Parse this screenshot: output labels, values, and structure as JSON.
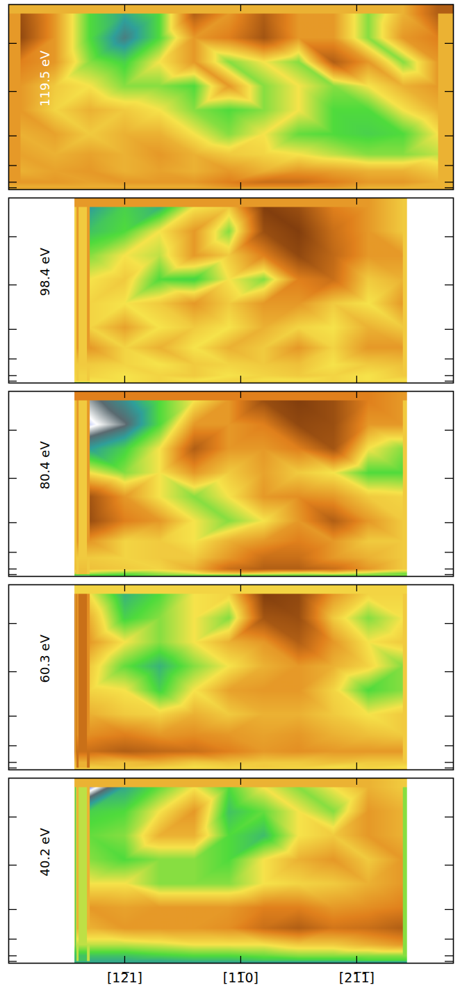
{
  "chart_data": [
    {
      "type": "heatmap",
      "title": "119.5 eV",
      "xlim": [
        -30,
        85
      ],
      "ylim": [
        0,
        1
      ],
      "zlim": [
        0,
        1
      ],
      "xticks": [
        {
          "value": 0,
          "label": "[12̅1]"
        },
        {
          "value": 30,
          "label": "[11̅0]"
        },
        {
          "value": 60,
          "label": "[21̅1̅]"
        }
      ],
      "yticks": [
        0.01,
        0.04,
        0.13,
        0.29,
        0.53,
        0.79
      ],
      "tick_labels": false,
      "x_extent": [
        -30,
        85
      ],
      "y_extent": [
        0,
        1
      ],
      "x": [
        -27,
        -18,
        -9,
        0,
        9,
        18,
        27,
        36,
        45,
        54,
        63,
        72,
        81
      ],
      "y": [
        0.95,
        0.82,
        0.69,
        0.56,
        0.43,
        0.3,
        0.19,
        0.1,
        0.04,
        0.01
      ],
      "values": [
        [
          0.1,
          0.3,
          0.6,
          0.7,
          0.6,
          0.15,
          0.3,
          0.15,
          0.3,
          0.3,
          0.55,
          0.35,
          0.15
        ],
        [
          0.08,
          0.3,
          0.6,
          0.78,
          0.6,
          0.3,
          0.25,
          0.12,
          0.3,
          0.3,
          0.55,
          0.3,
          0.25
        ],
        [
          0.25,
          0.3,
          0.55,
          0.62,
          0.45,
          0.3,
          0.55,
          0.45,
          0.55,
          0.15,
          0.3,
          0.55,
          0.3
        ],
        [
          0.3,
          0.4,
          0.45,
          0.55,
          0.55,
          0.6,
          0.3,
          0.55,
          0.45,
          0.55,
          0.45,
          0.35,
          0.3
        ],
        [
          0.3,
          0.42,
          0.35,
          0.4,
          0.45,
          0.55,
          0.6,
          0.55,
          0.45,
          0.6,
          0.6,
          0.45,
          0.35
        ],
        [
          0.35,
          0.32,
          0.4,
          0.35,
          0.35,
          0.45,
          0.55,
          0.45,
          0.58,
          0.6,
          0.62,
          0.6,
          0.45
        ],
        [
          0.32,
          0.35,
          0.32,
          0.35,
          0.3,
          0.35,
          0.4,
          0.42,
          0.45,
          0.5,
          0.55,
          0.55,
          0.5
        ],
        [
          0.35,
          0.32,
          0.3,
          0.35,
          0.32,
          0.35,
          0.3,
          0.35,
          0.3,
          0.32,
          0.35,
          0.35,
          0.4
        ],
        [
          0.3,
          0.3,
          0.32,
          0.3,
          0.3,
          0.3,
          0.25,
          0.2,
          0.2,
          0.25,
          0.3,
          0.3,
          0.35
        ],
        [
          0.35,
          0.35,
          0.35,
          0.35,
          0.35,
          0.35,
          0.3,
          0.3,
          0.3,
          0.3,
          0.35,
          0.35,
          0.35
        ]
      ]
    },
    {
      "type": "heatmap",
      "title": "98.4 eV",
      "xlim": [
        -30,
        85
      ],
      "ylim": [
        0,
        1
      ],
      "zlim": [
        0,
        1
      ],
      "xticks": [
        {
          "value": 0,
          "label": "[12̅1]"
        },
        {
          "value": 30,
          "label": "[11̅0]"
        },
        {
          "value": 60,
          "label": "[21̅1̅]"
        }
      ],
      "yticks": [
        0.01,
        0.04,
        0.13,
        0.29,
        0.53,
        0.79
      ],
      "tick_labels": false,
      "x_extent": [
        -13,
        73
      ],
      "y_extent": [
        0,
        1
      ],
      "x": [
        -9,
        0,
        9,
        18,
        27,
        36,
        45,
        54,
        63,
        72
      ],
      "y": [
        0.95,
        0.82,
        0.69,
        0.56,
        0.43,
        0.3,
        0.19,
        0.1,
        0.04,
        0.01
      ],
      "values": [
        [
          0.72,
          0.62,
          0.68,
          0.45,
          0.4,
          0.05,
          0.1,
          0.25,
          0.3,
          0.4
        ],
        [
          0.65,
          0.6,
          0.45,
          0.3,
          0.55,
          0.1,
          0.05,
          0.2,
          0.3,
          0.4
        ],
        [
          0.55,
          0.45,
          0.5,
          0.3,
          0.4,
          0.25,
          0.08,
          0.18,
          0.3,
          0.3
        ],
        [
          0.45,
          0.4,
          0.6,
          0.62,
          0.45,
          0.55,
          0.25,
          0.2,
          0.4,
          0.35
        ],
        [
          0.42,
          0.45,
          0.4,
          0.3,
          0.4,
          0.3,
          0.3,
          0.4,
          0.45,
          0.3
        ],
        [
          0.42,
          0.32,
          0.45,
          0.4,
          0.45,
          0.35,
          0.42,
          0.45,
          0.35,
          0.4
        ],
        [
          0.3,
          0.42,
          0.35,
          0.45,
          0.35,
          0.4,
          0.3,
          0.42,
          0.3,
          0.3
        ],
        [
          0.4,
          0.42,
          0.45,
          0.4,
          0.42,
          0.4,
          0.38,
          0.45,
          0.4,
          0.38
        ],
        [
          0.42,
          0.45,
          0.42,
          0.4,
          0.45,
          0.42,
          0.4,
          0.42,
          0.45,
          0.4
        ],
        [
          0.45,
          0.45,
          0.42,
          0.45,
          0.42,
          0.45,
          0.45,
          0.42,
          0.45,
          0.45
        ]
      ]
    },
    {
      "type": "heatmap",
      "title": "80.4 eV",
      "xlim": [
        -30,
        85
      ],
      "ylim": [
        0,
        1
      ],
      "zlim": [
        0,
        1
      ],
      "xticks": [
        {
          "value": 0,
          "label": "[12̅1]"
        },
        {
          "value": 30,
          "label": "[11̅0]"
        },
        {
          "value": 60,
          "label": "[21̅1̅]"
        }
      ],
      "yticks": [
        0.01,
        0.04,
        0.13,
        0.29,
        0.53,
        0.79
      ],
      "tick_labels": false,
      "x_extent": [
        -13,
        73
      ],
      "y_extent": [
        0,
        1
      ],
      "x": [
        -9,
        0,
        9,
        18,
        27,
        36,
        45,
        54,
        63,
        72
      ],
      "y": [
        0.95,
        0.82,
        0.69,
        0.56,
        0.43,
        0.3,
        0.19,
        0.1,
        0.04,
        0.01
      ],
      "values": [
        [
          0.85,
          0.75,
          0.6,
          0.45,
          0.3,
          0.1,
          0.05,
          0.1,
          0.25,
          0.3
        ],
        [
          0.92,
          0.83,
          0.6,
          0.3,
          0.3,
          0.25,
          0.08,
          0.1,
          0.3,
          0.3
        ],
        [
          0.72,
          0.62,
          0.45,
          0.15,
          0.3,
          0.3,
          0.25,
          0.12,
          0.45,
          0.55
        ],
        [
          0.45,
          0.55,
          0.45,
          0.3,
          0.4,
          0.32,
          0.4,
          0.45,
          0.6,
          0.6
        ],
        [
          0.12,
          0.3,
          0.45,
          0.55,
          0.45,
          0.3,
          0.28,
          0.3,
          0.4,
          0.42
        ],
        [
          0.1,
          0.25,
          0.3,
          0.45,
          0.55,
          0.45,
          0.3,
          0.15,
          0.3,
          0.4
        ],
        [
          0.3,
          0.42,
          0.4,
          0.45,
          0.35,
          0.3,
          0.25,
          0.3,
          0.4,
          0.4
        ],
        [
          0.4,
          0.42,
          0.4,
          0.4,
          0.3,
          0.2,
          0.2,
          0.3,
          0.35,
          0.4
        ],
        [
          0.38,
          0.4,
          0.42,
          0.35,
          0.2,
          0.15,
          0.15,
          0.2,
          0.3,
          0.4
        ],
        [
          0.55,
          0.6,
          0.55,
          0.5,
          0.45,
          0.5,
          0.55,
          0.5,
          0.55,
          0.6
        ]
      ]
    },
    {
      "type": "heatmap",
      "title": "60.3 eV",
      "xlim": [
        -30,
        85
      ],
      "ylim": [
        0,
        1
      ],
      "zlim": [
        0,
        1
      ],
      "xticks": [
        {
          "value": 0,
          "label": "[12̅1]"
        },
        {
          "value": 30,
          "label": "[11̅0]"
        },
        {
          "value": 60,
          "label": "[21̅1̅]"
        }
      ],
      "yticks": [
        0.01,
        0.04,
        0.13,
        0.29,
        0.53,
        0.79
      ],
      "tick_labels": false,
      "x_extent": [
        -13,
        73
      ],
      "y_extent": [
        0,
        1
      ],
      "x": [
        -9,
        0,
        9,
        18,
        27,
        36,
        45,
        54,
        63,
        72
      ],
      "y": [
        0.95,
        0.82,
        0.69,
        0.56,
        0.43,
        0.3,
        0.19,
        0.1,
        0.04,
        0.01
      ],
      "values": [
        [
          0.45,
          0.68,
          0.6,
          0.45,
          0.42,
          0.05,
          0.08,
          0.3,
          0.42,
          0.42
        ],
        [
          0.35,
          0.62,
          0.55,
          0.45,
          0.55,
          0.12,
          0.1,
          0.4,
          0.55,
          0.45
        ],
        [
          0.3,
          0.45,
          0.55,
          0.45,
          0.35,
          0.3,
          0.15,
          0.3,
          0.45,
          0.4
        ],
        [
          0.4,
          0.58,
          0.68,
          0.55,
          0.45,
          0.35,
          0.3,
          0.35,
          0.42,
          0.55
        ],
        [
          0.42,
          0.45,
          0.62,
          0.45,
          0.32,
          0.3,
          0.3,
          0.42,
          0.6,
          0.55
        ],
        [
          0.35,
          0.4,
          0.42,
          0.35,
          0.4,
          0.35,
          0.35,
          0.4,
          0.45,
          0.4
        ],
        [
          0.28,
          0.25,
          0.3,
          0.28,
          0.3,
          0.32,
          0.3,
          0.35,
          0.38,
          0.4
        ],
        [
          0.2,
          0.15,
          0.18,
          0.2,
          0.25,
          0.3,
          0.28,
          0.3,
          0.3,
          0.3
        ],
        [
          0.35,
          0.38,
          0.35,
          0.4,
          0.38,
          0.4,
          0.4,
          0.38,
          0.4,
          0.4
        ],
        [
          0.42,
          0.4,
          0.42,
          0.45,
          0.42,
          0.4,
          0.42,
          0.45,
          0.42,
          0.45
        ]
      ]
    },
    {
      "type": "heatmap",
      "title": "40.2 eV",
      "xlim": [
        -30,
        85
      ],
      "ylim": [
        0,
        1
      ],
      "zlim": [
        0,
        1
      ],
      "xticks": [
        {
          "value": 0,
          "label": "[12̅1]"
        },
        {
          "value": 30,
          "label": "[11̅0]"
        },
        {
          "value": 60,
          "label": "[21̅1̅]"
        }
      ],
      "yticks": [
        0.01,
        0.04,
        0.13,
        0.29,
        0.53,
        0.79
      ],
      "tick_labels": "x",
      "x_extent": [
        -13,
        73
      ],
      "y_extent": [
        0,
        1
      ],
      "x": [
        -9,
        0,
        9,
        18,
        27,
        36,
        45,
        54,
        63,
        72
      ],
      "y": [
        0.95,
        0.82,
        0.69,
        0.56,
        0.43,
        0.3,
        0.19,
        0.1,
        0.04,
        0.01
      ],
      "values": [
        [
          0.95,
          0.7,
          0.58,
          0.45,
          0.6,
          0.45,
          0.55,
          0.45,
          0.35,
          0.4
        ],
        [
          0.62,
          0.6,
          0.45,
          0.3,
          0.65,
          0.58,
          0.45,
          0.55,
          0.3,
          0.35
        ],
        [
          0.58,
          0.55,
          0.35,
          0.35,
          0.6,
          0.66,
          0.45,
          0.4,
          0.3,
          0.35
        ],
        [
          0.55,
          0.6,
          0.55,
          0.55,
          0.6,
          0.45,
          0.35,
          0.3,
          0.4,
          0.3
        ],
        [
          0.45,
          0.45,
          0.55,
          0.55,
          0.55,
          0.45,
          0.42,
          0.4,
          0.35,
          0.3
        ],
        [
          0.3,
          0.32,
          0.3,
          0.3,
          0.3,
          0.25,
          0.25,
          0.3,
          0.28,
          0.25
        ],
        [
          0.35,
          0.3,
          0.3,
          0.3,
          0.28,
          0.2,
          0.15,
          0.22,
          0.2,
          0.15
        ],
        [
          0.5,
          0.5,
          0.48,
          0.45,
          0.45,
          0.45,
          0.4,
          0.4,
          0.35,
          0.3
        ],
        [
          0.65,
          0.65,
          0.62,
          0.6,
          0.6,
          0.58,
          0.55,
          0.55,
          0.55,
          0.55
        ],
        [
          0.7,
          0.7,
          0.7,
          0.68,
          0.68,
          0.65,
          0.65,
          0.65,
          0.62,
          0.62
        ]
      ]
    }
  ]
}
